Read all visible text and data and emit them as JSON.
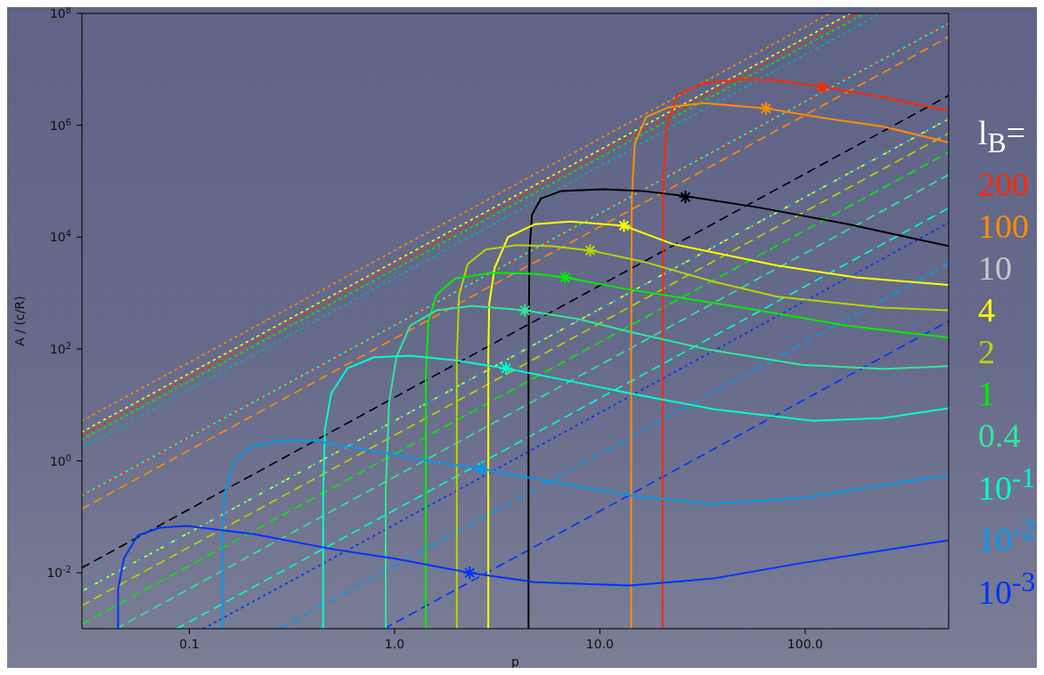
{
  "chart_data": {
    "type": "line",
    "xlabel": "p",
    "ylabel": "A / (c/R)",
    "legend_title": "l$_{B}$=",
    "legend": "right",
    "log": "xy",
    "xlim": [
      0.03,
      500
    ],
    "ylim": [
      0.001,
      100000000.0
    ],
    "xticks": [
      {
        "value": 0.1,
        "label": "0.1"
      },
      {
        "value": 1,
        "label": "1.0"
      },
      {
        "value": 10,
        "label": "10.0"
      },
      {
        "value": 100,
        "label": "100.0"
      }
    ],
    "yticks": [
      {
        "value": 0.01,
        "label": "10$^{-2}$"
      },
      {
        "value": 1,
        "label": "10$^{0}$"
      },
      {
        "value": 100,
        "label": "10$^{2}$"
      },
      {
        "value": 10000,
        "label": "10$^{4}$"
      },
      {
        "value": 1000000,
        "label": "10$^{6}$"
      },
      {
        "value": 100000000,
        "label": "10$^{8}$"
      }
    ],
    "series": [
      {
        "type": "line",
        "line_style": "dotted",
        "color": "#ff8c00",
        "x": [
          0.03,
          132
        ],
        "values": [
          5.2,
          100000000.0
        ]
      },
      {
        "type": "line",
        "line_style": "dotted",
        "color": "#ffff00",
        "x": [
          0.03,
          166
        ],
        "values": [
          3.3,
          100000000.0
        ]
      },
      {
        "type": "line",
        "line_style": "dotted",
        "color": "#ff2a00",
        "x": [
          0.03,
          180
        ],
        "values": [
          2.8,
          100000000.0
        ]
      },
      {
        "type": "line",
        "line_style": "dotted",
        "color": "#00ee00",
        "x": [
          0.03,
          195
        ],
        "values": [
          2.4,
          100000000.0
        ]
      },
      {
        "type": "line",
        "line_style": "dotted",
        "color": "#00b3a0",
        "x": [
          0.03,
          234
        ],
        "values": [
          1.7,
          100000000.0
        ]
      },
      {
        "type": "line",
        "line_style": "dashed",
        "color": "#ff2a00",
        "x": [
          0.03,
          500
        ],
        "values": [
          0.24,
          66000000.0
        ]
      },
      {
        "type": "line",
        "line_style": "dotted",
        "color": "#00ffcc",
        "x": [
          0.03,
          500
        ],
        "values": [
          0.24,
          66000000.0
        ]
      },
      {
        "type": "line",
        "line_style": "dashed",
        "color": "#ff8c00",
        "x": [
          0.03,
          500
        ],
        "values": [
          0.14,
          38000000.0
        ]
      },
      {
        "type": "line",
        "line_style": "dashed",
        "color": "#000000",
        "x": [
          0.03,
          500
        ],
        "values": [
          0.0123,
          3400000.0
        ]
      },
      {
        "type": "line",
        "line_style": "dashed",
        "color": "#ffff00",
        "x": [
          0.03,
          500
        ],
        "values": [
          0.0047,
          1300000.0
        ]
      },
      {
        "type": "line",
        "line_style": "dotted",
        "color": "#0099ee",
        "x": [
          0.03,
          500
        ],
        "values": [
          0.0047,
          1300000.0
        ]
      },
      {
        "type": "line",
        "line_style": "dashed",
        "color": "#b8d400",
        "x": [
          0.03,
          500
        ],
        "values": [
          0.0026,
          720000.0
        ]
      },
      {
        "type": "line",
        "line_style": "dashed",
        "color": "#00ee00",
        "x": [
          0.03,
          500
        ],
        "values": [
          0.0012,
          330000.0
        ]
      },
      {
        "type": "line",
        "line_style": "dashed",
        "color": "#2ee89a",
        "x": [
          0.044,
          500
        ],
        "values": [
          0.001,
          130000.0
        ]
      },
      {
        "type": "line",
        "line_style": "dashed",
        "color": "#00ffcc",
        "x": [
          0.087,
          500
        ],
        "values": [
          0.001,
          33000.0
        ]
      },
      {
        "type": "line",
        "line_style": "dashed",
        "color": "#0099ee",
        "x": [
          0.275,
          500
        ],
        "values": [
          0.001,
          3300
        ]
      },
      {
        "type": "line",
        "line_style": "dashed",
        "color": "#0033ff",
        "x": [
          0.89,
          500
        ],
        "values": [
          0.001,
          316
        ]
      },
      {
        "type": "line",
        "line_style": "dotted",
        "color": "#0033ff",
        "x": [
          0.117,
          500
        ],
        "values": [
          0.001,
          18000.0
        ]
      },
      {
        "name": "200",
        "type": "line",
        "line_style": "solid",
        "color": "#ff2a00",
        "x": [
          20.2,
          20.2,
          20.4,
          21.2,
          23.9,
          32.3,
          48.2,
          71.9,
          121,
          239,
          500
        ],
        "values": [
          0.001,
          71,
          110000.0,
          980000.0,
          3500000.0,
          5700000.0,
          6600000.0,
          6400000.0,
          4800000.0,
          3200000.0,
          1800000.0
        ]
      },
      {
        "name": "100",
        "type": "line",
        "line_style": "solid",
        "color": "#ff8c00",
        "x": [
          14.2,
          14.2,
          14.3,
          14.8,
          16.8,
          21.6,
          32.3,
          64.4,
          131,
          239,
          500
        ],
        "values": [
          0.001,
          71,
          52000.0,
          470000.0,
          1400000.0,
          2100000.0,
          2500000.0,
          2000000.0,
          1300000.0,
          950000.0,
          490000.0
        ]
      },
      {
        "name": "10",
        "type": "line",
        "line_style": "solid",
        "color": "#000000",
        "x": [
          4.49,
          4.49,
          4.54,
          4.67,
          5.16,
          6.5,
          10.4,
          16,
          26.1,
          58.9,
          162,
          500
        ],
        "values": [
          0.001,
          71,
          5800,
          25000.0,
          49000.0,
          67000.0,
          72000.0,
          67000.0,
          54000.0,
          34000.0,
          17000.0,
          6900
        ]
      },
      {
        "name": "4",
        "type": "line",
        "line_style": "solid",
        "color": "#ffff00",
        "x": [
          2.86,
          2.86,
          2.89,
          3.07,
          3.57,
          4.82,
          7.19,
          13.1,
          22.7,
          73.3,
          177,
          500
        ],
        "values": [
          0.001,
          71,
          640,
          2800,
          10000.0,
          17000.0,
          19000.0,
          16000.0,
          7500,
          3100,
          1900,
          1400
        ]
      },
      {
        "name": "2",
        "type": "line",
        "line_style": "solid",
        "color": "#b8d400",
        "x": [
          2.01,
          2.01,
          2.06,
          2.27,
          2.78,
          3.94,
          5.88,
          8.96,
          16,
          35.7,
          73.3,
          239,
          500
        ],
        "values": [
          0.001,
          71,
          920,
          3300,
          6000,
          7200,
          6900,
          5800,
          3700,
          1600,
          860,
          550,
          490
        ]
      },
      {
        "name": "1",
        "type": "line",
        "line_style": "solid",
        "color": "#00ee00",
        "x": [
          1.42,
          1.42,
          1.46,
          1.6,
          1.96,
          2.95,
          4.82,
          6.77,
          13.1,
          49.6,
          160,
          500
        ],
        "values": [
          0.001,
          34,
          310,
          920,
          1800,
          2300,
          2200,
          1900,
          1200,
          550,
          260,
          160
        ]
      },
      {
        "name": "0.4",
        "type": "line",
        "line_style": "solid",
        "color": "#2ee89a",
        "x": [
          0.905,
          0.905,
          0.94,
          1.02,
          1.19,
          1.6,
          2.39,
          4.31,
          7.94,
          14.2,
          33.6,
          97,
          239,
          500
        ],
        "values": [
          0.001,
          0.29,
          11,
          71,
          260,
          490,
          590,
          490,
          340,
          200,
          98,
          52,
          44,
          49
        ]
      },
      {
        "name": "10$^{-1}$",
        "type": "line",
        "line_style": "solid",
        "color": "#00ffcc",
        "x": [
          0.449,
          0.449,
          0.458,
          0.491,
          0.589,
          0.794,
          1.19,
          1.96,
          3.49,
          7.05,
          14.2,
          35.7,
          109,
          239,
          500
        ],
        "values": [
          0.001,
          0.29,
          3.7,
          16,
          45,
          71,
          76,
          63,
          45,
          27,
          16,
          8.4,
          5.2,
          5.8,
          8.7
        ]
      },
      {
        "name": "10$^{-2}$",
        "type": "line",
        "line_style": "solid",
        "color": "#0099ee",
        "x": [
          0.145,
          0.145,
          0.148,
          0.166,
          0.2,
          0.28,
          0.4,
          1,
          1.58,
          2.64,
          4.8,
          14.1,
          36,
          100,
          500
        ],
        "values": [
          0.001,
          0.032,
          0.25,
          1.0,
          1.8,
          2.3,
          2.3,
          1.3,
          0.95,
          0.72,
          0.48,
          0.24,
          0.17,
          0.22,
          0.56
        ]
      },
      {
        "name": "10$^{-3}$",
        "type": "line",
        "line_style": "solid",
        "color": "#0033ff",
        "x": [
          0.045,
          0.045,
          0.048,
          0.056,
          0.072,
          0.097,
          0.206,
          0.512,
          1,
          2.32,
          4.82,
          13.9,
          35.7,
          97,
          500
        ],
        "values": [
          0.001,
          0.0051,
          0.018,
          0.046,
          0.064,
          0.069,
          0.049,
          0.026,
          0.018,
          0.01,
          0.0068,
          0.0059,
          0.0079,
          0.015,
          0.038
        ]
      },
      {
        "type": "scatter",
        "marker": "cross",
        "colors": [
          "#ff2a00",
          "#ff8c00",
          "#000000",
          "#ffff00",
          "#b8d400",
          "#00ee00",
          "#2ee89a",
          "#00ffcc",
          "#0099ee",
          "#0033ff"
        ],
        "x": [
          121,
          64.4,
          26.1,
          13.1,
          8.96,
          6.77,
          4.31,
          3.49,
          2.64,
          2.32
        ],
        "values": [
          4800000.0,
          2000000.0,
          52000.0,
          16000.0,
          5800,
          1900,
          490,
          45,
          0.72,
          0.01
        ]
      }
    ]
  }
}
